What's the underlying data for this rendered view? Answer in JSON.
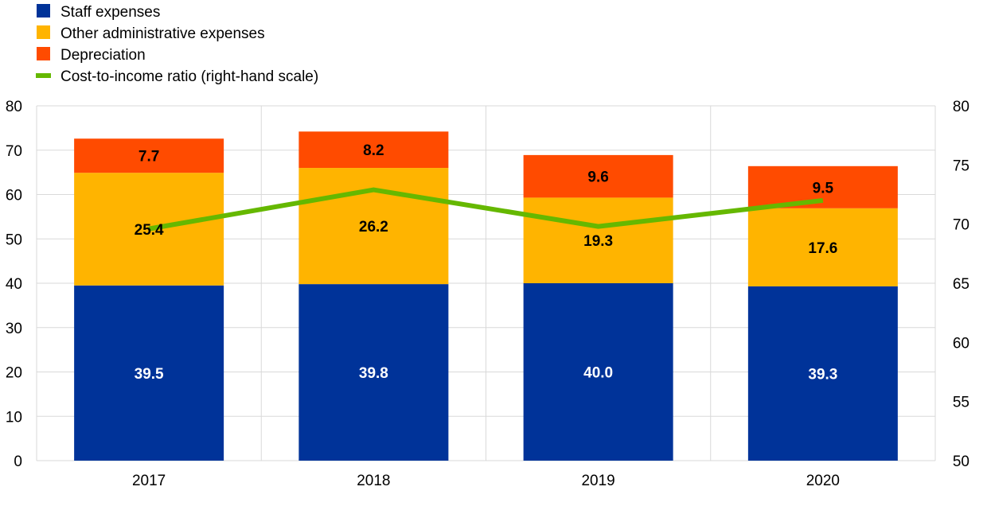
{
  "chart_data": {
    "type": "bar",
    "stacked": true,
    "categories": [
      "2017",
      "2018",
      "2019",
      "2020"
    ],
    "series": [
      {
        "name": "Staff expenses",
        "values": [
          39.5,
          39.8,
          40.0,
          39.3
        ],
        "color": "#003399",
        "label_color": "#ffffff"
      },
      {
        "name": "Other administrative expenses",
        "values": [
          25.4,
          26.2,
          19.3,
          17.6
        ],
        "color": "#ffb400",
        "label_color": "#000000"
      },
      {
        "name": "Depreciation",
        "values": [
          7.7,
          8.2,
          9.6,
          9.5
        ],
        "color": "#ff4b00",
        "label_color": "#000000"
      }
    ],
    "line_series": {
      "name": "Cost-to-income ratio (right-hand scale)",
      "values": [
        69.6,
        72.9,
        69.8,
        72.0
      ],
      "color": "#65b800",
      "axis": "right"
    },
    "ylim": [
      0,
      80
    ],
    "yticks": [
      "0",
      "10",
      "20",
      "30",
      "40",
      "50",
      "60",
      "70",
      "80"
    ],
    "y2lim": [
      50,
      80
    ],
    "y2ticks": [
      "50",
      "55",
      "60",
      "65",
      "70",
      "75",
      "80"
    ],
    "legend_position": "top-left",
    "grid": true
  }
}
